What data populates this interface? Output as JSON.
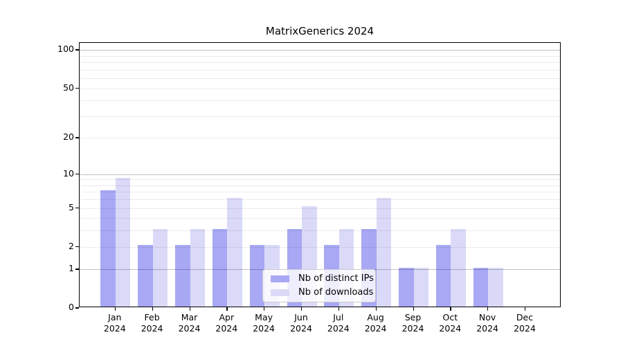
{
  "title": "MatrixGenerics 2024",
  "chart_data": {
    "type": "bar",
    "title": "MatrixGenerics 2024",
    "categories": [
      "Jan",
      "Feb",
      "Mar",
      "Apr",
      "May",
      "Jun",
      "Jul",
      "Aug",
      "Sep",
      "Oct",
      "Nov",
      "Dec"
    ],
    "x_tick_year": "2024",
    "series": [
      {
        "name": "Nb of distinct IPs",
        "color": "#a8a8f5",
        "values": [
          7,
          2,
          2,
          3,
          2,
          3,
          2,
          3,
          1,
          2,
          1,
          0
        ]
      },
      {
        "name": "Nb of downloads",
        "color": "#dadaf8",
        "values": [
          9,
          3,
          3,
          6,
          2,
          5,
          3,
          6,
          1,
          3,
          1,
          0
        ]
      }
    ],
    "y_axis": {
      "scale": "log1p",
      "ticks": [
        0,
        1,
        2,
        5,
        10,
        20,
        50,
        100
      ],
      "major_gridlines": [
        1,
        10,
        100
      ],
      "minor_gridlines": [
        2,
        3,
        4,
        5,
        6,
        7,
        8,
        9,
        20,
        30,
        40,
        50,
        60,
        70,
        80,
        90
      ],
      "ylim": [
        0,
        115
      ]
    },
    "grid": "horizontal",
    "legend": {
      "position": "inside-bottom-center",
      "items": [
        "Nb of distinct IPs",
        "Nb of downloads"
      ]
    }
  }
}
